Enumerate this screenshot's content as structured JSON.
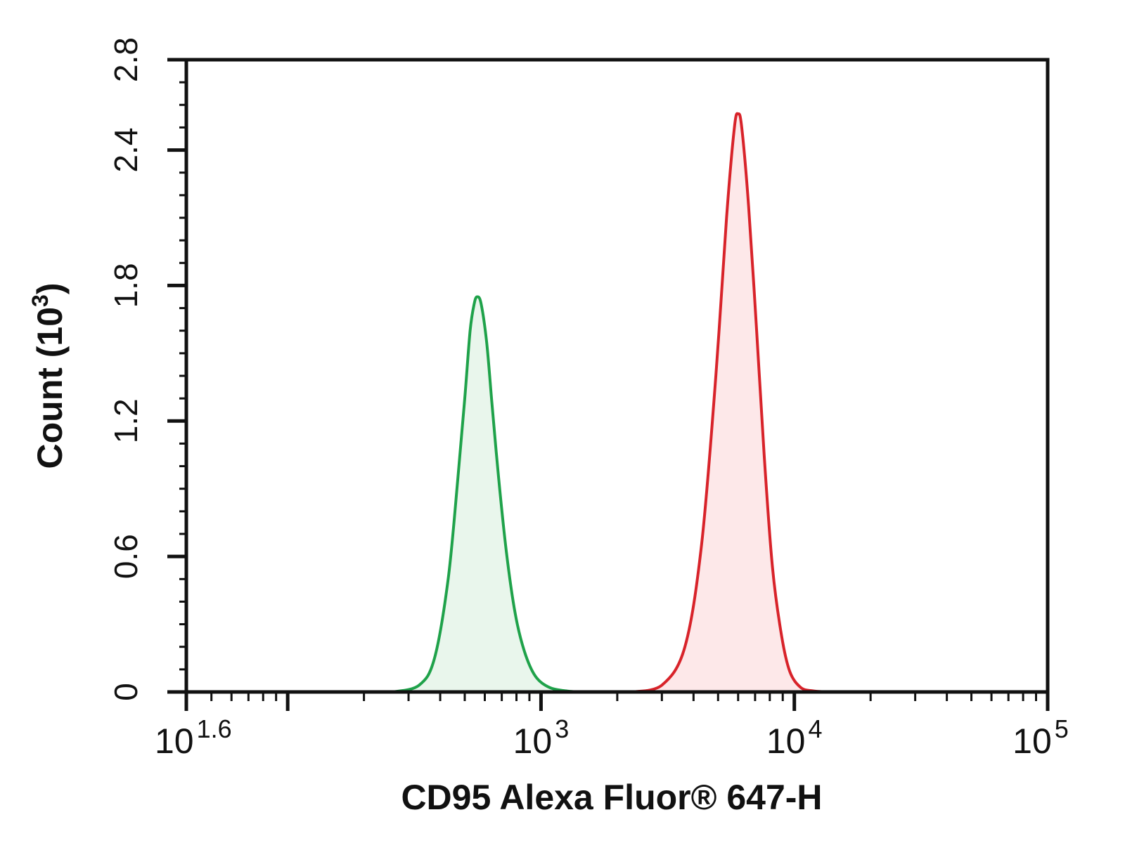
{
  "chart_data": {
    "type": "area",
    "title": "",
    "xlabel": "CD95 Alexa Fluor® 647-H",
    "ylabel": {
      "base": "Count (10",
      "sup": "3",
      "close": ")"
    },
    "x_scale": "log",
    "xlim": [
      39.8,
      100000
    ],
    "ylim": [
      0,
      2.8
    ],
    "y_ticks": [
      "0",
      "0.6",
      "1.2",
      "1.8",
      "2.4",
      "2.8"
    ],
    "y_tick_values": [
      0,
      0.6,
      1.2,
      1.8,
      2.4,
      2.8
    ],
    "x_ticks": [
      {
        "base": "10",
        "sup": "1.6",
        "value": 39.8
      },
      {
        "base": "10",
        "sup": "3",
        "value": 1000
      },
      {
        "base": "10",
        "sup": "4",
        "value": 10000
      },
      {
        "base": "10",
        "sup": "5",
        "value": 100000
      }
    ],
    "series": [
      {
        "color": "#1fa24a",
        "fill": "#e9f6ec",
        "x": [
          260,
          330,
          380,
          430,
          470,
          500,
          525,
          545,
          560,
          580,
          610,
          640,
          680,
          730,
          790,
          860,
          950,
          1080,
          1250,
          1400
        ],
        "y": [
          0,
          0.03,
          0.15,
          0.5,
          0.95,
          1.3,
          1.6,
          1.72,
          1.75,
          1.72,
          1.55,
          1.28,
          0.95,
          0.62,
          0.35,
          0.18,
          0.07,
          0.02,
          0.005,
          0
        ]
      },
      {
        "color": "#d8232a",
        "fill": "#fde8e9",
        "x": [
          2300,
          3000,
          3700,
          4300,
          4900,
          5400,
          5800,
          6000,
          6200,
          6600,
          7100,
          7600,
          8200,
          8900,
          9600,
          10600,
          11800,
          13500
        ],
        "y": [
          0,
          0.03,
          0.2,
          0.65,
          1.4,
          2.1,
          2.5,
          2.56,
          2.5,
          2.15,
          1.6,
          1.05,
          0.55,
          0.25,
          0.09,
          0.02,
          0.005,
          0
        ]
      }
    ]
  }
}
